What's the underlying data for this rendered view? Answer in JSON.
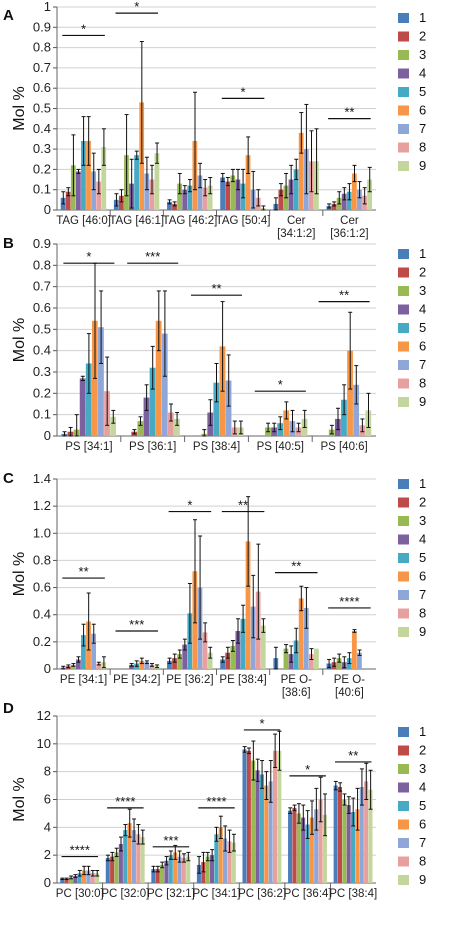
{
  "series_colors": [
    "#4a7ebb",
    "#be4b48",
    "#98b954",
    "#7d60a0",
    "#46aac5",
    "#f79646",
    "#8ea6d8",
    "#e8a09e",
    "#c3d69b"
  ],
  "legend": [
    "1",
    "2",
    "3",
    "4",
    "5",
    "6",
    "7",
    "8",
    "9"
  ],
  "chart_data": [
    {
      "panel": "A",
      "type": "bar",
      "ylabel": "Mol %",
      "ylim": [
        0,
        1.0
      ],
      "ticks": [
        "0",
        "0.1",
        "0.2",
        "0.3",
        "0.4",
        "0.5",
        "0.6",
        "0.7",
        "0.8",
        "0.9",
        "1"
      ],
      "categories": [
        "TAG [46:0]",
        "TAG [46:1]",
        "TAG [46:2]",
        "TAG [50:4]",
        "Cer\n[34:1:2]",
        "Cer\n[36:1:2]"
      ],
      "series": [
        {
          "name": "1",
          "values": [
            0.06,
            0.05,
            0.04,
            0.16,
            0.03,
            0.02
          ],
          "errors": [
            0.03,
            0.03,
            0.01,
            0.02,
            0.03,
            0.01
          ]
        },
        {
          "name": "2",
          "values": [
            0.09,
            0.07,
            0.03,
            0.14,
            0.1,
            0.03
          ],
          "errors": [
            0.02,
            0.03,
            0.01,
            0.02,
            0.03,
            0.01
          ]
        },
        {
          "name": "3",
          "values": [
            0.22,
            0.27,
            0.13,
            0.17,
            0.12,
            0.06
          ],
          "errors": [
            0.15,
            0.2,
            0.05,
            0.03,
            0.06,
            0.03
          ]
        },
        {
          "name": "4",
          "values": [
            0.19,
            0.13,
            0.1,
            0.15,
            0.15,
            0.08
          ],
          "errors": [
            0.01,
            0.12,
            0.02,
            0.05,
            0.07,
            0.03
          ]
        },
        {
          "name": "5",
          "values": [
            0.34,
            0.27,
            0.12,
            0.13,
            0.2,
            0.09
          ],
          "errors": [
            0.12,
            0.02,
            0.03,
            0.07,
            0.05,
            0.04
          ]
        },
        {
          "name": "6",
          "values": [
            0.34,
            0.53,
            0.34,
            0.27,
            0.38,
            0.18
          ],
          "errors": [
            0.12,
            0.3,
            0.24,
            0.09,
            0.1,
            0.04
          ]
        },
        {
          "name": "7",
          "values": [
            0.19,
            0.18,
            0.17,
            0.1,
            0.3,
            0.1
          ],
          "errors": [
            0.09,
            0.08,
            0.06,
            0.09,
            0.22,
            0.04
          ]
        },
        {
          "name": "8",
          "values": [
            0.14,
            0.15,
            0.11,
            0.06,
            0.24,
            0.07
          ],
          "errors": [
            0.06,
            0.07,
            0.04,
            0.04,
            0.15,
            0.04
          ]
        },
        {
          "name": "9",
          "values": [
            0.31,
            0.28,
            0.12,
            0.01,
            0.24,
            0.15
          ],
          "errors": [
            0.09,
            0.05,
            0.04,
            0.01,
            0.16,
            0.06
          ]
        }
      ],
      "significance": [
        {
          "from": 0,
          "to": 0,
          "y": 0.86,
          "label": "*"
        },
        {
          "from": 1,
          "to": 1,
          "y": 0.97,
          "label": "*"
        },
        {
          "from": 3,
          "to": 3,
          "y": 0.55,
          "label": "*"
        },
        {
          "from": 5,
          "to": 5,
          "y": 0.45,
          "label": "**"
        }
      ]
    },
    {
      "panel": "B",
      "type": "bar",
      "ylabel": "Mol %",
      "ylim": [
        0,
        0.9
      ],
      "ticks": [
        "0",
        "0.1",
        "0.2",
        "0.3",
        "0.4",
        "0.5",
        "0.6",
        "0.7",
        "0.8",
        "0.9"
      ],
      "categories": [
        "PS [34:1]",
        "PS [36:1]",
        "PS [38:4]",
        "PS [40:5]",
        "PS [40:6]"
      ],
      "series": [
        {
          "name": "1",
          "values": [
            0.01,
            0.0,
            0.0,
            0.0,
            0.0
          ],
          "errors": [
            0.01,
            0.0,
            0.0,
            0.0,
            0.0
          ]
        },
        {
          "name": "2",
          "values": [
            0.02,
            0.02,
            0.0,
            0.0,
            0.0
          ],
          "errors": [
            0.02,
            0.01,
            0.0,
            0.0,
            0.0
          ]
        },
        {
          "name": "3",
          "values": [
            0.03,
            0.07,
            0.01,
            0.04,
            0.03
          ],
          "errors": [
            0.07,
            0.02,
            0.02,
            0.02,
            0.02
          ]
        },
        {
          "name": "4",
          "values": [
            0.27,
            0.18,
            0.11,
            0.04,
            0.08
          ],
          "errors": [
            0.01,
            0.06,
            0.06,
            0.02,
            0.05
          ]
        },
        {
          "name": "5",
          "values": [
            0.34,
            0.32,
            0.25,
            0.06,
            0.17
          ],
          "errors": [
            0.14,
            0.1,
            0.09,
            0.03,
            0.07
          ]
        },
        {
          "name": "6",
          "values": [
            0.54,
            0.54,
            0.42,
            0.12,
            0.4
          ],
          "errors": [
            0.27,
            0.14,
            0.21,
            0.04,
            0.18
          ]
        },
        {
          "name": "7",
          "values": [
            0.51,
            0.48,
            0.26,
            0.07,
            0.24
          ],
          "errors": [
            0.17,
            0.2,
            0.12,
            0.05,
            0.09
          ]
        },
        {
          "name": "8",
          "values": [
            0.21,
            0.11,
            0.04,
            0.04,
            0.05
          ],
          "errors": [
            0.16,
            0.04,
            0.03,
            0.02,
            0.03
          ]
        },
        {
          "name": "9",
          "values": [
            0.09,
            0.08,
            0.04,
            0.08,
            0.12
          ],
          "errors": [
            0.03,
            0.03,
            0.03,
            0.04,
            0.08
          ]
        }
      ],
      "significance": [
        {
          "from": 0,
          "to": 0,
          "y": 0.81,
          "label": "*"
        },
        {
          "from": 1,
          "to": 1,
          "y": 0.81,
          "label": "***"
        },
        {
          "from": 2,
          "to": 2,
          "y": 0.66,
          "label": "**"
        },
        {
          "from": 3,
          "to": 3,
          "y": 0.21,
          "label": "*"
        },
        {
          "from": 4,
          "to": 4,
          "y": 0.63,
          "label": "**"
        }
      ]
    },
    {
      "panel": "C",
      "type": "bar",
      "ylabel": "Mol %",
      "ylim": [
        0,
        1.4
      ],
      "ticks": [
        "0",
        "0.2",
        "0.4",
        "0.6",
        "0.8",
        "1.0",
        "1.2",
        "1.4"
      ],
      "categories": [
        "PE [34:1]",
        "PE [34:2]",
        "PE [36:2]",
        "PE [38:4]",
        "PE O-\n[38:6]",
        "PE O-\n[40:6]"
      ],
      "series": [
        {
          "name": "1",
          "values": [
            0.01,
            0.0,
            0.06,
            0.07,
            0.08,
            0.04
          ],
          "errors": [
            0.01,
            0.0,
            0.02,
            0.02,
            0.08,
            0.03
          ]
        },
        {
          "name": "2",
          "values": [
            0.02,
            0.0,
            0.08,
            0.12,
            0.0,
            0.05
          ],
          "errors": [
            0.01,
            0.0,
            0.03,
            0.04,
            0.0,
            0.03
          ]
        },
        {
          "name": "3",
          "values": [
            0.03,
            0.0,
            0.11,
            0.17,
            0.15,
            0.08
          ],
          "errors": [
            0.01,
            0.0,
            0.03,
            0.04,
            0.03,
            0.03
          ]
        },
        {
          "name": "4",
          "values": [
            0.07,
            0.03,
            0.18,
            0.28,
            0.11,
            0.05
          ],
          "errors": [
            0.02,
            0.01,
            0.04,
            0.09,
            0.06,
            0.04
          ]
        },
        {
          "name": "5",
          "values": [
            0.25,
            0.04,
            0.41,
            0.37,
            0.21,
            0.08
          ],
          "errors": [
            0.08,
            0.02,
            0.22,
            0.1,
            0.09,
            0.04
          ]
        },
        {
          "name": "6",
          "values": [
            0.35,
            0.06,
            0.72,
            0.94,
            0.52,
            0.28
          ],
          "errors": [
            0.21,
            0.02,
            0.38,
            0.33,
            0.09,
            0.01
          ]
        },
        {
          "name": "7",
          "values": [
            0.26,
            0.05,
            0.6,
            0.46,
            0.45,
            0.12
          ],
          "errors": [
            0.07,
            0.01,
            0.38,
            0.23,
            0.15,
            0.02
          ]
        },
        {
          "name": "8",
          "values": [
            0.04,
            0.03,
            0.27,
            0.57,
            0.11,
            0.0
          ],
          "errors": [
            0.01,
            0.01,
            0.07,
            0.35,
            0.04,
            0.0
          ]
        },
        {
          "name": "9",
          "values": [
            0.05,
            0.02,
            0.12,
            0.32,
            0.15,
            0.0
          ],
          "errors": [
            0.04,
            0.01,
            0.04,
            0.05,
            0.0,
            0.0
          ]
        }
      ],
      "significance": [
        {
          "from": 0,
          "to": 0,
          "y": 0.67,
          "label": "**"
        },
        {
          "from": 1,
          "to": 1,
          "y": 0.28,
          "label": "***"
        },
        {
          "from": 2,
          "to": 2,
          "y": 1.16,
          "label": "*"
        },
        {
          "from": 3,
          "to": 3,
          "y": 1.16,
          "label": "**"
        },
        {
          "from": 4,
          "to": 4,
          "y": 0.71,
          "label": "**"
        },
        {
          "from": 5,
          "to": 5,
          "y": 0.45,
          "label": "****"
        }
      ]
    },
    {
      "panel": "D",
      "type": "bar",
      "ylabel": "Mol %",
      "ylim": [
        0,
        12
      ],
      "ticks": [
        "0",
        "2",
        "4",
        "6",
        "8",
        "10",
        "12"
      ],
      "categories": [
        "PC [30:0]",
        "PC [32:0]",
        "PC [32:1]",
        "PC [34:1]",
        "PC [36:2]",
        "PC [36:4]",
        "PC [38:4]"
      ],
      "series": [
        {
          "name": "1",
          "values": [
            0.3,
            1.8,
            1.0,
            1.3,
            9.6,
            5.2,
            7.0
          ],
          "errors": [
            0.05,
            0.2,
            0.2,
            0.6,
            0.2,
            0.2,
            0.3
          ]
        },
        {
          "name": "2",
          "values": [
            0.3,
            1.9,
            1.0,
            1.5,
            9.5,
            5.4,
            6.9
          ],
          "errors": [
            0.05,
            0.3,
            0.2,
            0.7,
            0.2,
            0.2,
            0.3
          ]
        },
        {
          "name": "3",
          "values": [
            0.4,
            2.2,
            1.3,
            1.9,
            8.8,
            5.0,
            6.0
          ],
          "errors": [
            0.1,
            0.3,
            0.2,
            0.3,
            1.4,
            0.7,
            0.4
          ]
        },
        {
          "name": "4",
          "values": [
            0.5,
            2.8,
            1.6,
            2.0,
            8.1,
            4.7,
            5.6
          ],
          "errors": [
            0.1,
            0.5,
            0.3,
            0.4,
            0.8,
            0.9,
            0.6
          ]
        },
        {
          "name": "5",
          "values": [
            0.7,
            3.8,
            2.0,
            3.5,
            7.8,
            4.2,
            5.1
          ],
          "errors": [
            0.2,
            0.4,
            0.3,
            0.5,
            1.0,
            1.0,
            1.0
          ]
        },
        {
          "name": "6",
          "values": [
            0.9,
            4.3,
            2.2,
            4.0,
            7.0,
            4.7,
            5.3
          ],
          "errors": [
            0.3,
            1.0,
            0.5,
            0.8,
            1.0,
            1.2,
            1.5
          ]
        },
        {
          "name": "7",
          "values": [
            0.9,
            3.8,
            1.9,
            3.2,
            7.3,
            5.3,
            6.9
          ],
          "errors": [
            0.3,
            0.8,
            0.4,
            0.9,
            1.5,
            1.5,
            1.3
          ]
        },
        {
          "name": "8",
          "values": [
            0.7,
            3.5,
            1.8,
            3.0,
            9.5,
            6.0,
            7.3
          ],
          "errors": [
            0.2,
            0.7,
            0.3,
            0.8,
            1.2,
            1.6,
            1.3
          ]
        },
        {
          "name": "9",
          "values": [
            0.7,
            3.3,
            1.9,
            2.9,
            9.5,
            4.9,
            6.7
          ],
          "errors": [
            0.2,
            0.5,
            0.3,
            0.6,
            1.4,
            1.5,
            1.4
          ]
        }
      ],
      "significance": [
        {
          "from": 0,
          "to": 0,
          "y": 1.9,
          "label": "****"
        },
        {
          "from": 1,
          "to": 1,
          "y": 5.4,
          "label": "****"
        },
        {
          "from": 2,
          "to": 2,
          "y": 2.6,
          "label": "***"
        },
        {
          "from": 3,
          "to": 3,
          "y": 5.4,
          "label": "****"
        },
        {
          "from": 4,
          "to": 4,
          "y": 11.0,
          "label": "*"
        },
        {
          "from": 5,
          "to": 5,
          "y": 7.7,
          "label": "*"
        },
        {
          "from": 6,
          "to": 6,
          "y": 8.7,
          "label": "**"
        }
      ]
    }
  ]
}
